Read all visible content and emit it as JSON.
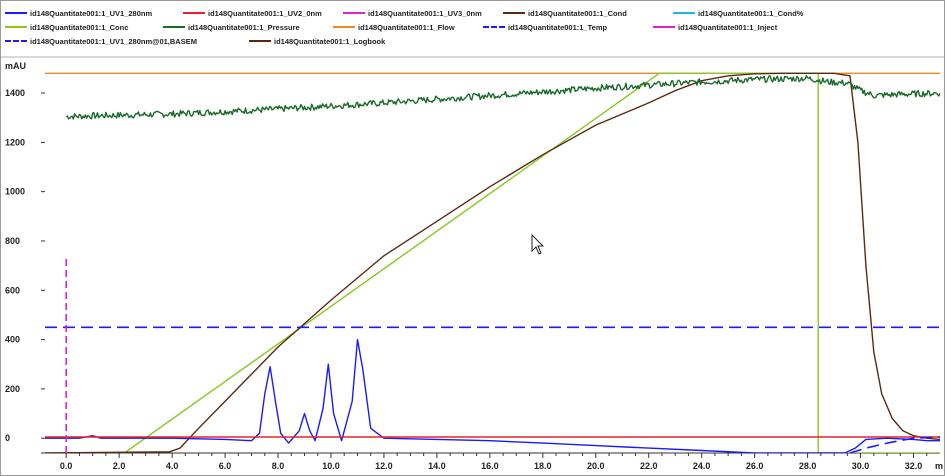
{
  "chart_data": {
    "type": "line",
    "ylabel": "mAU",
    "xlim": [
      -0.8,
      33.0
    ],
    "ylim": [
      -60,
      1530
    ],
    "x_ticks": [
      "0.0",
      "2.0",
      "4.0",
      "6.0",
      "8.0",
      "10.0",
      "12.0",
      "14.0",
      "16.0",
      "18.0",
      "20.0",
      "22.0",
      "24.0",
      "26.0",
      "28.0",
      "30.0",
      "32.0"
    ],
    "x_tick_values": [
      0,
      2,
      4,
      6,
      8,
      10,
      12,
      14,
      16,
      18,
      20,
      22,
      24,
      26,
      28,
      30,
      32
    ],
    "x_unit_fragment": "m",
    "y_ticks": [
      "0",
      "200",
      "400",
      "600",
      "800",
      "1000",
      "1200",
      "1400"
    ],
    "y_tick_values": [
      0,
      200,
      400,
      600,
      800,
      1000,
      1200,
      1400
    ],
    "legend": [
      {
        "label": "id148Quantitate001:1_UV1_280nm",
        "color": "#1a1aff",
        "dashed": false
      },
      {
        "label": "id148Quantitate001:1_UV2_0nm",
        "color": "#e8202a",
        "dashed": false
      },
      {
        "label": "id148Quantitate001:1_UV3_0nm",
        "color": "#e020d0",
        "dashed": false
      },
      {
        "label": "id148Quantitate001:1_Cond",
        "color": "#5a2a10",
        "dashed": false
      },
      {
        "label": "id148Quantitate001:1_Cond%",
        "color": "#20b8e0",
        "dashed": false
      },
      {
        "label": "id148Quantitate001:1_Conc",
        "color": "#88c820",
        "dashed": false
      },
      {
        "label": "id148Quantitate001:1_Pressure",
        "color": "#1a6a2a",
        "dashed": false
      },
      {
        "label": "id148Quantitate001:1_Flow",
        "color": "#f08a20",
        "dashed": false
      },
      {
        "label": "id148Quantitate001:1_Temp",
        "color": "#1a1aff",
        "dashed": true
      },
      {
        "label": "id148Quantitate001:1_Inject",
        "color": "#e020d0",
        "dashed": false
      },
      {
        "label": "id148Quantitate001:1_UV1_280nm@01,BASEM",
        "color": "#1a1aff",
        "dashed": true
      },
      {
        "label": "id148Quantitate001:1_Logbook",
        "color": "#5a2a10",
        "dashed": false
      }
    ],
    "series": [
      {
        "name": "id148Quantitate001:1_Flow",
        "color": "#f08a20",
        "x": [
          -0.8,
          33.0
        ],
        "y": [
          1480,
          1480
        ]
      },
      {
        "name": "id148Quantitate001:1_Conc",
        "color": "#88c820",
        "x": [
          -0.8,
          2.2,
          22.4,
          28.4,
          28.4,
          33.0
        ],
        "y": [
          -60,
          -60,
          1480,
          1480,
          -60,
          -60
        ]
      },
      {
        "name": "id148Quantitate001:1_Cond",
        "color": "#5a2a10",
        "x": [
          -0.8,
          3.9,
          4.3,
          5.0,
          6.0,
          8.0,
          10.0,
          12.0,
          14.0,
          16.0,
          18.0,
          20.0,
          22.0,
          23.0,
          24.0,
          25.0,
          26.0,
          27.0,
          28.0,
          29.0,
          29.6,
          29.9,
          30.2,
          30.5,
          30.8,
          31.2,
          31.6,
          32.0,
          32.5,
          33.0
        ],
        "y": [
          -60,
          -55,
          -40,
          40,
          150,
          370,
          560,
          740,
          880,
          1020,
          1150,
          1270,
          1360,
          1410,
          1450,
          1470,
          1478,
          1480,
          1480,
          1480,
          1470,
          1200,
          700,
          350,
          180,
          80,
          30,
          10,
          0,
          -5
        ]
      },
      {
        "name": "id148Quantitate001:1_Pressure",
        "color": "#1a6a2a",
        "x": [
          0.0,
          4.0,
          8.0,
          12.0,
          16.0,
          20.0,
          24.0,
          26.0,
          28.0,
          28.8,
          29.5,
          30.0,
          30.5,
          31.5,
          33.0
        ],
        "y": [
          1305,
          1315,
          1335,
          1360,
          1390,
          1420,
          1445,
          1455,
          1460,
          1445,
          1440,
          1410,
          1390,
          1395,
          1400
        ]
      },
      {
        "name": "id148Quantitate001:1_UV1_280nm",
        "color": "#1a1aff",
        "x": [
          -0.8,
          0.5,
          1.0,
          1.3,
          2.0,
          4.0,
          6.0,
          7.0,
          7.3,
          7.5,
          7.7,
          7.9,
          8.1,
          8.4,
          8.8,
          9.0,
          9.2,
          9.4,
          9.7,
          9.9,
          10.1,
          10.4,
          10.8,
          11.0,
          11.2,
          11.5,
          12.0,
          14.0,
          16.0,
          18.0,
          20.0,
          22.0,
          24.0,
          26.0,
          28.0,
          29.4,
          29.8,
          30.2,
          31.0,
          32.0,
          32.5,
          33.0
        ],
        "y": [
          0,
          0,
          10,
          0,
          0,
          0,
          -5,
          -10,
          20,
          180,
          290,
          150,
          20,
          -20,
          30,
          100,
          30,
          -10,
          120,
          300,
          100,
          -10,
          150,
          400,
          280,
          40,
          0,
          -5,
          -10,
          -20,
          -30,
          -40,
          -50,
          -60,
          -60,
          -60,
          -40,
          -5,
          0,
          -5,
          -10,
          -10
        ]
      },
      {
        "name": "id148Quantitate001:1_UV2_0nm",
        "color": "#e8202a",
        "x": [
          -0.8,
          33.0
        ],
        "y": [
          5,
          5
        ]
      },
      {
        "name": "id148Quantitate001:1_UV1_280nm@01,BASEM",
        "color": "#1a1aff",
        "dashed": true,
        "x": [
          -0.8,
          33.0
        ],
        "y": [
          450,
          450
        ]
      },
      {
        "name": "id148Quantitate001:1_Temp",
        "color": "#1a1aff",
        "dashed": true,
        "x": [
          29.6,
          30.2,
          31.0,
          32.0,
          33.0
        ],
        "y": [
          -60,
          -40,
          -20,
          0,
          5
        ]
      },
      {
        "name": "id148Quantitate001:1_Inject",
        "color": "#e020d0",
        "dashed": true,
        "x": [
          0.0,
          0.0
        ],
        "y": [
          -60,
          730
        ]
      }
    ]
  }
}
